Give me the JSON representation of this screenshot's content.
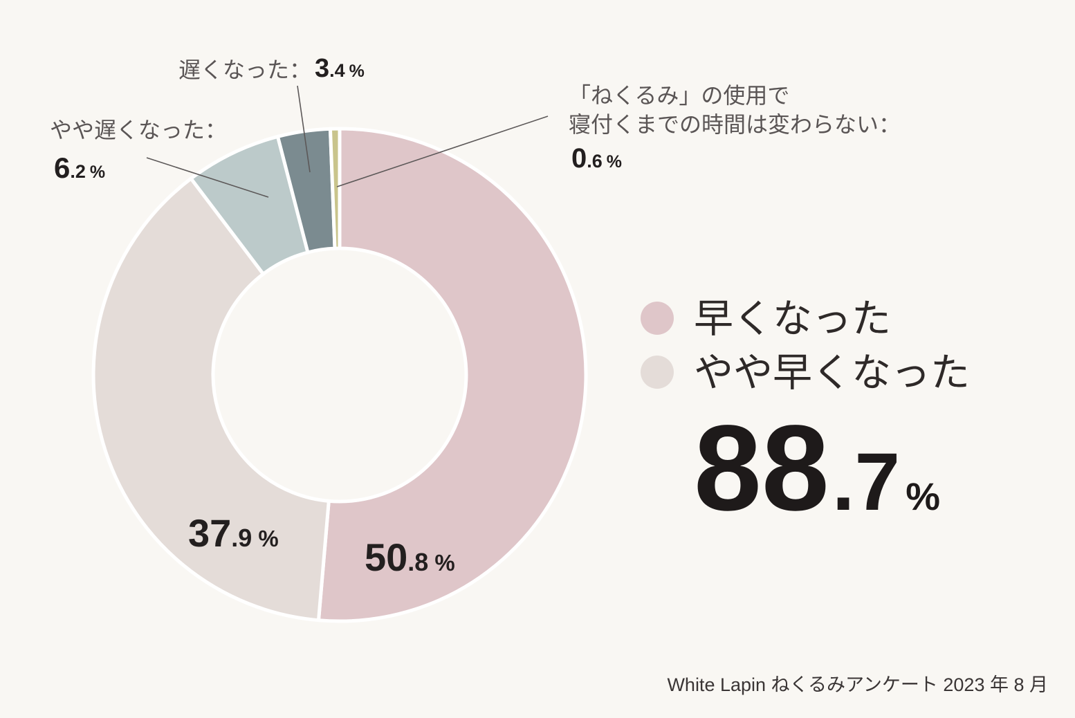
{
  "chart_data": {
    "type": "pie",
    "donut": true,
    "unit": "%",
    "separator": "：",
    "slices": [
      {
        "label": "早くなった",
        "value": 50.8,
        "color": "#dfc6c9"
      },
      {
        "label": "やや早くなった",
        "value": 37.9,
        "color": "#e4dcd8"
      },
      {
        "label": "やや遅くなった",
        "value": 6.2,
        "color": "#bccaca"
      },
      {
        "label": "遅くなった",
        "value": 3.4,
        "color": "#7b8b90"
      },
      {
        "label_lines": [
          "「ねくるみ」の使用で",
          "寝付くまでの時間は変わらない"
        ],
        "value": 0.6,
        "color": "#c9c48c"
      }
    ],
    "legend": {
      "placement": "right"
    }
  },
  "summary": {
    "value": 88.7
  },
  "source": "White Lapin ねくるみアンケート 2023 年 8 月",
  "colors": {
    "background": "#f9f7f3",
    "slice_border": "#ffffff",
    "label_text": "#5a5555",
    "value_text": "#231f1f",
    "leader_line": "#5c5858",
    "legend_text": "#2e2928",
    "source_text": "#3a3535"
  }
}
